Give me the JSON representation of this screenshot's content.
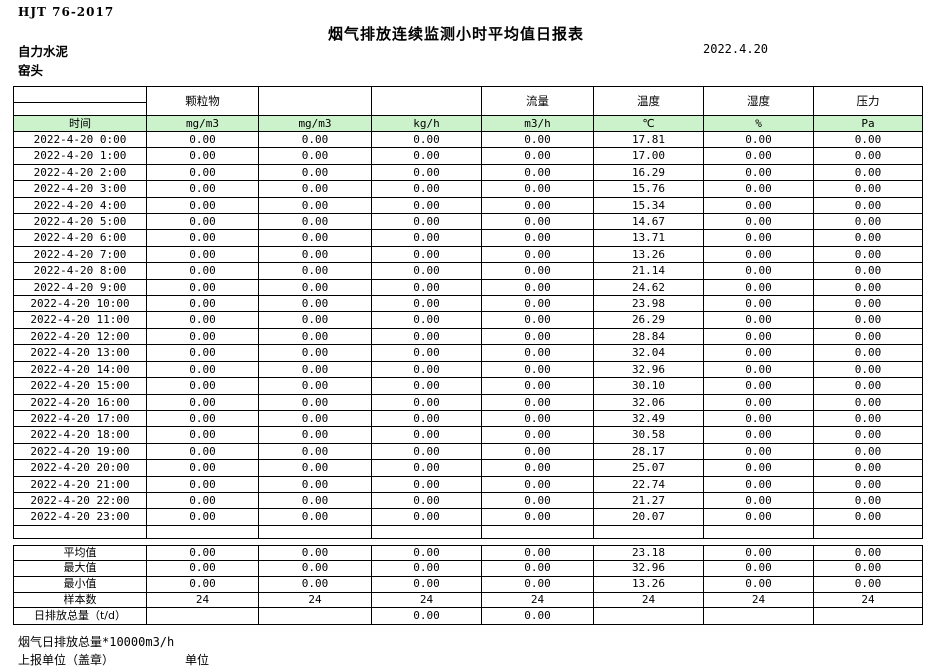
{
  "page": {
    "standard_code": "HJT  76-2017",
    "title": "烟气排放连续监测小时平均值日报表",
    "company": "自力水泥",
    "station": "窑头",
    "date": "2022.4.20"
  },
  "table": {
    "group_headers": [
      "颗粒物",
      "",
      "",
      "流量",
      "温度",
      "湿度",
      "压力"
    ],
    "unit_headers": [
      "时间",
      "mg/m3",
      "mg/m3",
      "kg/h",
      "m3/h",
      "℃",
      "%",
      "Pa"
    ],
    "rows": [
      {
        "time": "2022-4-20 0:00",
        "values": [
          "0.00",
          "0.00",
          "0.00",
          "0.00",
          "17.81",
          "0.00",
          "0.00"
        ]
      },
      {
        "time": "2022-4-20 1:00",
        "values": [
          "0.00",
          "0.00",
          "0.00",
          "0.00",
          "17.00",
          "0.00",
          "0.00"
        ]
      },
      {
        "time": "2022-4-20 2:00",
        "values": [
          "0.00",
          "0.00",
          "0.00",
          "0.00",
          "16.29",
          "0.00",
          "0.00"
        ]
      },
      {
        "time": "2022-4-20 3:00",
        "values": [
          "0.00",
          "0.00",
          "0.00",
          "0.00",
          "15.76",
          "0.00",
          "0.00"
        ]
      },
      {
        "time": "2022-4-20 4:00",
        "values": [
          "0.00",
          "0.00",
          "0.00",
          "0.00",
          "15.34",
          "0.00",
          "0.00"
        ]
      },
      {
        "time": "2022-4-20 5:00",
        "values": [
          "0.00",
          "0.00",
          "0.00",
          "0.00",
          "14.67",
          "0.00",
          "0.00"
        ]
      },
      {
        "time": "2022-4-20 6:00",
        "values": [
          "0.00",
          "0.00",
          "0.00",
          "0.00",
          "13.71",
          "0.00",
          "0.00"
        ]
      },
      {
        "time": "2022-4-20 7:00",
        "values": [
          "0.00",
          "0.00",
          "0.00",
          "0.00",
          "13.26",
          "0.00",
          "0.00"
        ]
      },
      {
        "time": "2022-4-20 8:00",
        "values": [
          "0.00",
          "0.00",
          "0.00",
          "0.00",
          "21.14",
          "0.00",
          "0.00"
        ]
      },
      {
        "time": "2022-4-20 9:00",
        "values": [
          "0.00",
          "0.00",
          "0.00",
          "0.00",
          "24.62",
          "0.00",
          "0.00"
        ]
      },
      {
        "time": "2022-4-20 10:00",
        "values": [
          "0.00",
          "0.00",
          "0.00",
          "0.00",
          "23.98",
          "0.00",
          "0.00"
        ]
      },
      {
        "time": "2022-4-20 11:00",
        "values": [
          "0.00",
          "0.00",
          "0.00",
          "0.00",
          "26.29",
          "0.00",
          "0.00"
        ]
      },
      {
        "time": "2022-4-20 12:00",
        "values": [
          "0.00",
          "0.00",
          "0.00",
          "0.00",
          "28.84",
          "0.00",
          "0.00"
        ]
      },
      {
        "time": "2022-4-20 13:00",
        "values": [
          "0.00",
          "0.00",
          "0.00",
          "0.00",
          "32.04",
          "0.00",
          "0.00"
        ]
      },
      {
        "time": "2022-4-20 14:00",
        "values": [
          "0.00",
          "0.00",
          "0.00",
          "0.00",
          "32.96",
          "0.00",
          "0.00"
        ]
      },
      {
        "time": "2022-4-20 15:00",
        "values": [
          "0.00",
          "0.00",
          "0.00",
          "0.00",
          "30.10",
          "0.00",
          "0.00"
        ]
      },
      {
        "time": "2022-4-20 16:00",
        "values": [
          "0.00",
          "0.00",
          "0.00",
          "0.00",
          "32.06",
          "0.00",
          "0.00"
        ]
      },
      {
        "time": "2022-4-20 17:00",
        "values": [
          "0.00",
          "0.00",
          "0.00",
          "0.00",
          "32.49",
          "0.00",
          "0.00"
        ]
      },
      {
        "time": "2022-4-20 18:00",
        "values": [
          "0.00",
          "0.00",
          "0.00",
          "0.00",
          "30.58",
          "0.00",
          "0.00"
        ]
      },
      {
        "time": "2022-4-20 19:00",
        "values": [
          "0.00",
          "0.00",
          "0.00",
          "0.00",
          "28.17",
          "0.00",
          "0.00"
        ]
      },
      {
        "time": "2022-4-20 20:00",
        "values": [
          "0.00",
          "0.00",
          "0.00",
          "0.00",
          "25.07",
          "0.00",
          "0.00"
        ]
      },
      {
        "time": "2022-4-20 21:00",
        "values": [
          "0.00",
          "0.00",
          "0.00",
          "0.00",
          "22.74",
          "0.00",
          "0.00"
        ]
      },
      {
        "time": "2022-4-20 22:00",
        "values": [
          "0.00",
          "0.00",
          "0.00",
          "0.00",
          "21.27",
          "0.00",
          "0.00"
        ]
      },
      {
        "time": "2022-4-20 23:00",
        "values": [
          "0.00",
          "0.00",
          "0.00",
          "0.00",
          "20.07",
          "0.00",
          "0.00"
        ]
      }
    ],
    "summary_rows": [
      {
        "label": "平均值",
        "values": [
          "0.00",
          "0.00",
          "0.00",
          "0.00",
          "23.18",
          "0.00",
          "0.00"
        ]
      },
      {
        "label": "最大值",
        "values": [
          "0.00",
          "0.00",
          "0.00",
          "0.00",
          "32.96",
          "0.00",
          "0.00"
        ]
      },
      {
        "label": "最小值",
        "values": [
          "0.00",
          "0.00",
          "0.00",
          "0.00",
          "13.26",
          "0.00",
          "0.00"
        ]
      },
      {
        "label": "样本数",
        "values": [
          "24",
          "24",
          "24",
          "24",
          "24",
          "24",
          "24"
        ]
      },
      {
        "label": "日排放总量（t/d）",
        "values": [
          "",
          "",
          "0.00",
          "0.00",
          "",
          "",
          ""
        ]
      }
    ]
  },
  "footer": {
    "note": "烟气日排放总量*10000m3/h",
    "report_unit_label": "上报单位（盖章）",
    "unit_label": "单位"
  },
  "colors": {
    "header_green": "#ccf2cc",
    "border": "#000000"
  }
}
